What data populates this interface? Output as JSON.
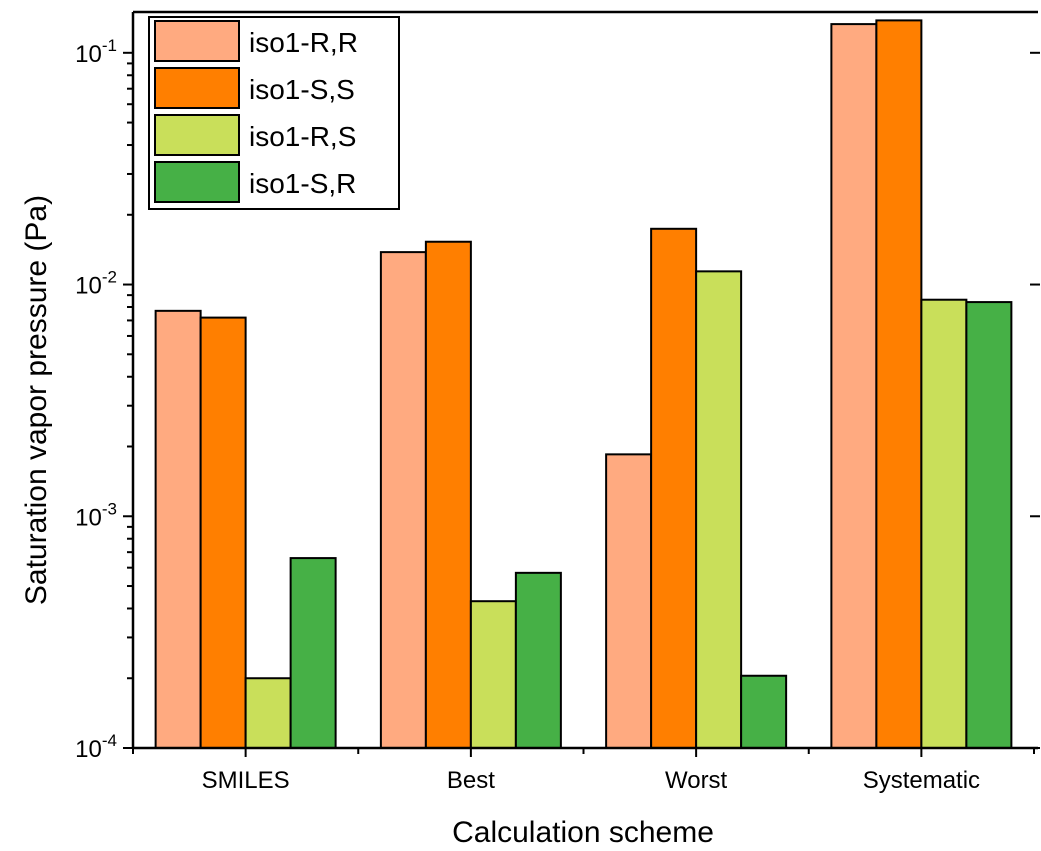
{
  "chart_data": {
    "type": "bar",
    "xlabel": "Calculation scheme",
    "ylabel": "Saturation vapor pressure (Pa)",
    "yscale": "log",
    "ylim": [
      0.0001,
      0.15
    ],
    "yticks": [
      {
        "value": 0.0001,
        "base": "10",
        "exp": "-4"
      },
      {
        "value": 0.001,
        "base": "10",
        "exp": "-3"
      },
      {
        "value": 0.01,
        "base": "10",
        "exp": "-2"
      },
      {
        "value": 0.1,
        "base": "10",
        "exp": "-1"
      }
    ],
    "categories": [
      "SMILES",
      "Best",
      "Worst",
      "Systematic"
    ],
    "series": [
      {
        "name": "iso1-R,R",
        "color": "#FFAA80",
        "values": [
          0.0077,
          0.0138,
          0.00185,
          0.133
        ]
      },
      {
        "name": "iso1-S,S",
        "color": "#FF7F00",
        "values": [
          0.0072,
          0.0153,
          0.0174,
          0.138
        ]
      },
      {
        "name": "iso1-R,S",
        "color": "#C9DF5A",
        "values": [
          0.0002,
          0.00043,
          0.0114,
          0.0086
        ]
      },
      {
        "name": "iso1-S,R",
        "color": "#46B046",
        "values": [
          0.00066,
          0.00057,
          0.000205,
          0.0084
        ]
      }
    ],
    "legend": "top-left",
    "grid": false
  }
}
